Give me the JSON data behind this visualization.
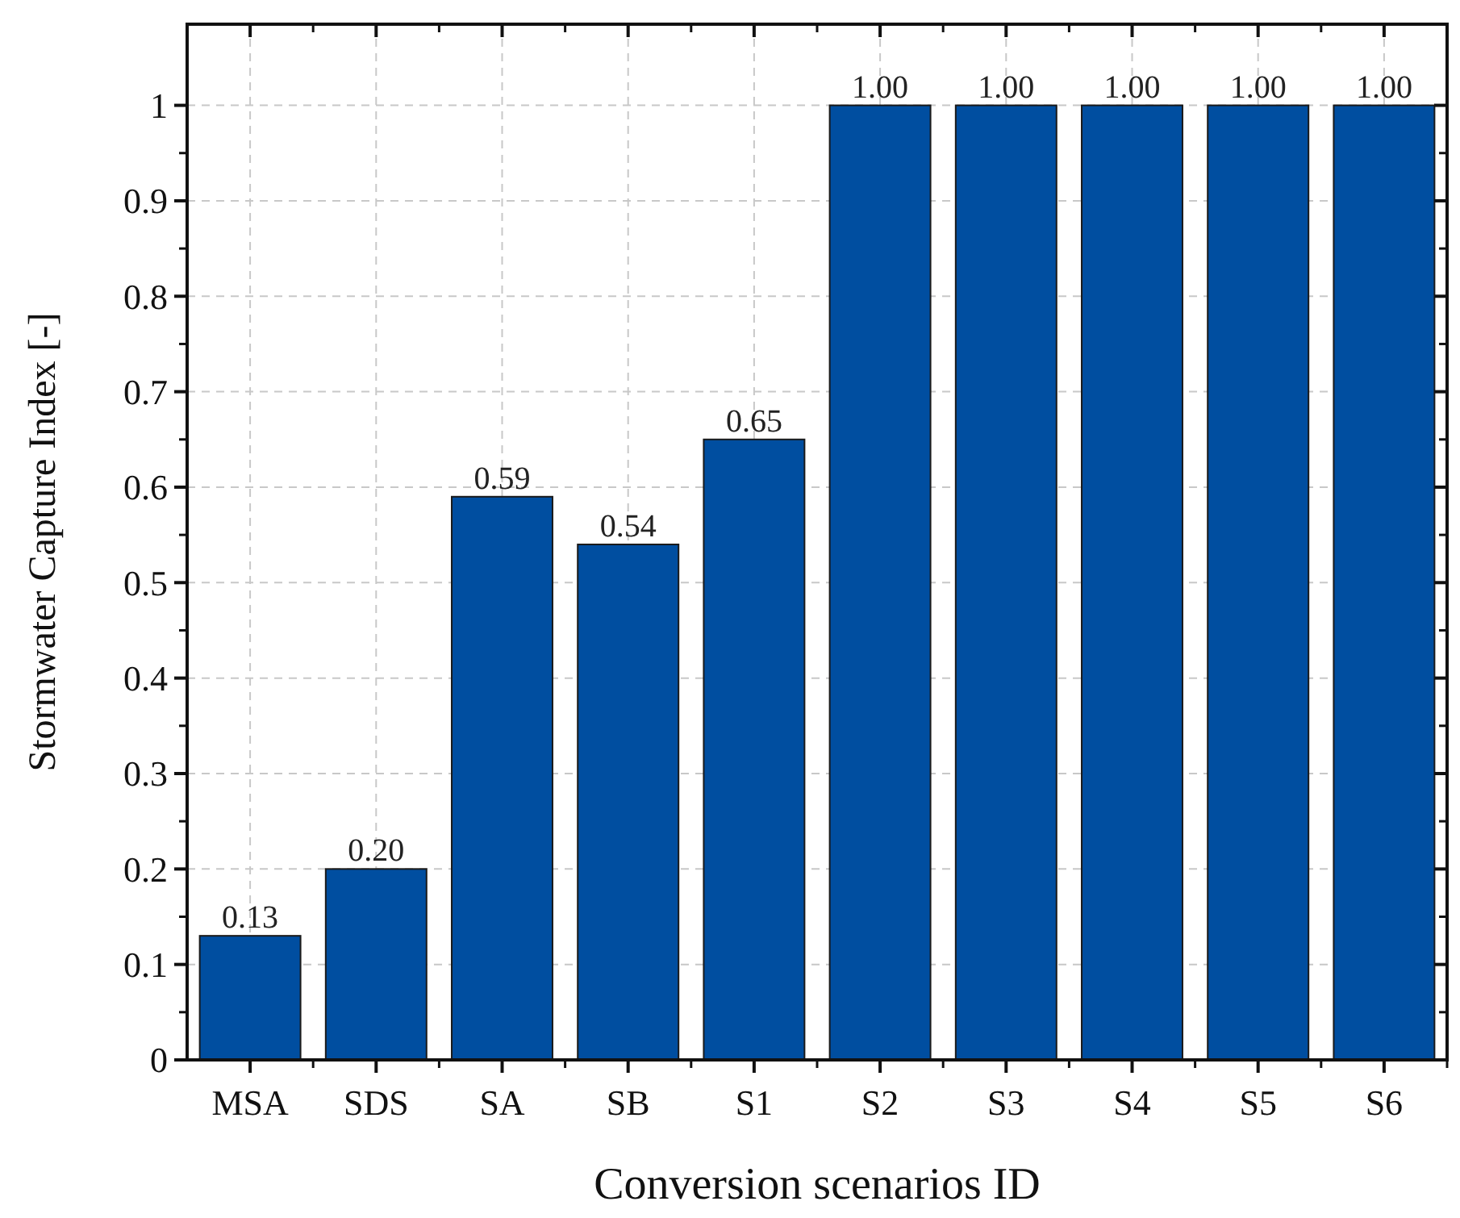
{
  "chart_data": {
    "type": "bar",
    "xlabel": "Conversion scenarios ID",
    "ylabel": "Stormwater Capture Index [-]",
    "categories": [
      "MSA",
      "SDS",
      "SA",
      "SB",
      "S1",
      "S2",
      "S3",
      "S4",
      "S5",
      "S6"
    ],
    "values": [
      0.13,
      0.2,
      0.59,
      0.54,
      0.65,
      1,
      1,
      1,
      1,
      1
    ],
    "value_labels": [
      "0.13",
      "0.20",
      "0.59",
      "0.54",
      "0.65",
      "1.00",
      "1.00",
      "1.00",
      "1.00",
      "1.00"
    ],
    "color": "#004ea0",
    "ylim": [
      0,
      1.085
    ],
    "yticks": [
      0,
      0.1,
      0.2,
      0.3,
      0.4,
      0.5,
      0.6,
      0.7,
      0.8,
      0.9,
      1
    ],
    "grid": true
  }
}
